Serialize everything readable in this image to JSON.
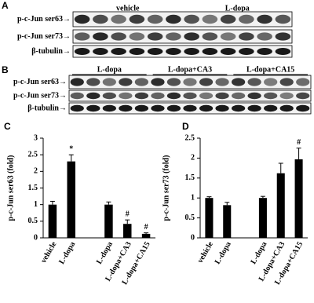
{
  "blots": [
    {
      "panel": "A",
      "groups": [
        "vehicle",
        "L-dopa"
      ],
      "rows": [
        "p-c-Jun ser63→",
        "p-c-Jun ser73→",
        "β-tubulin→"
      ]
    },
    {
      "panel": "B",
      "groups": [
        "L-dopa",
        "L-dopa+CA3",
        "L-dopa+CA15"
      ],
      "rows": [
        "p-c-Jun ser63→",
        "p-c-Jun ser73→",
        "β-tubulin→"
      ]
    }
  ],
  "chart_data": [
    {
      "type": "bar",
      "panel": "C",
      "y_label": "p-c-Jun ser63 (fold)",
      "categories": [
        "vehicle",
        "L-dopa",
        null,
        "L-dopa",
        "L-dopa+CA3",
        "L-dopa+CA15"
      ],
      "values": [
        1.0,
        2.3,
        null,
        1.0,
        0.42,
        0.12
      ],
      "errors": [
        0.1,
        0.2,
        null,
        0.08,
        0.12,
        0.03
      ],
      "markers": [
        null,
        "*",
        null,
        null,
        "#",
        "#"
      ],
      "color": "#000000",
      "ylim": [
        0,
        3
      ],
      "yticks": [
        0,
        0.5,
        1,
        1.5,
        2,
        2.5,
        3
      ]
    },
    {
      "type": "bar",
      "panel": "D",
      "y_label": "p-c-Jun ser73 (fold)",
      "categories": [
        "vehicle",
        "L-dopa",
        null,
        "L-dopa",
        "L-dopa+CA3",
        "L-dopa+CA15"
      ],
      "values": [
        1.0,
        0.82,
        null,
        1.0,
        1.62,
        1.97
      ],
      "errors": [
        0.03,
        0.07,
        null,
        0.04,
        0.25,
        0.28
      ],
      "markers": [
        null,
        null,
        null,
        null,
        null,
        "#"
      ],
      "color": "#000000",
      "ylim": [
        0,
        2.5
      ],
      "yticks": [
        0,
        0.5,
        1,
        1.5,
        2,
        2.5
      ]
    }
  ]
}
